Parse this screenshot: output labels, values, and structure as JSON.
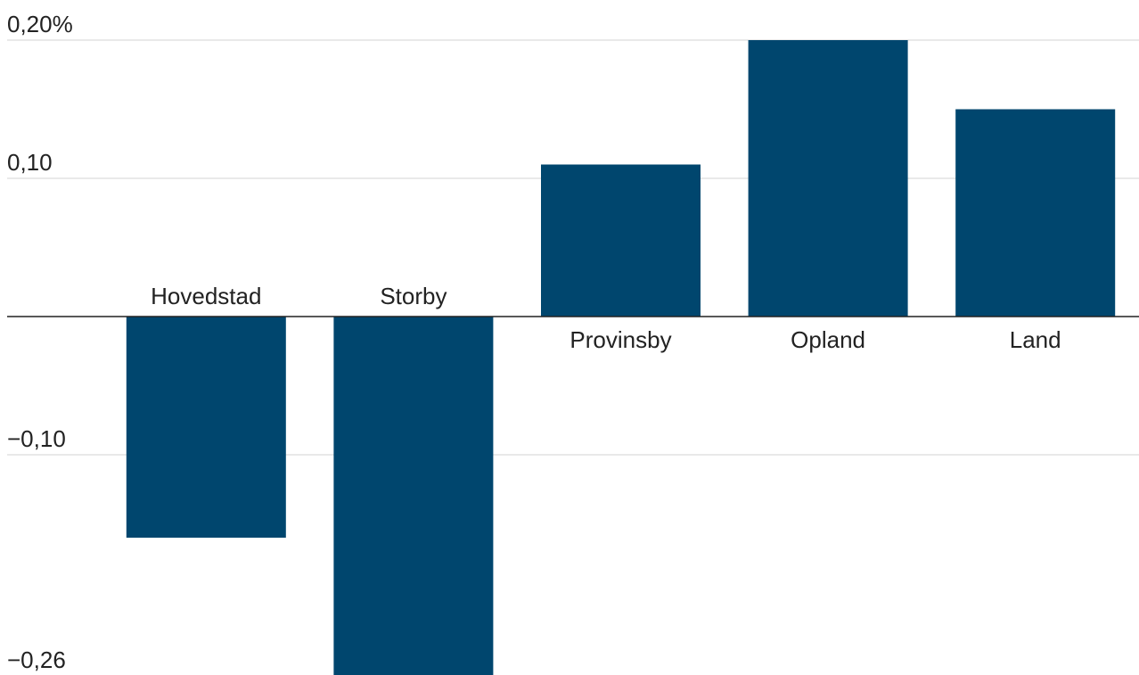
{
  "chart_data": {
    "type": "bar",
    "categories": [
      "Hovedstad",
      "Storby",
      "Provinsby",
      "Opland",
      "Land"
    ],
    "values": [
      -0.16,
      -0.26,
      0.11,
      0.2,
      0.15
    ],
    "ylim": [
      -0.26,
      0.2
    ],
    "ticks": [
      {
        "value": 0.2,
        "label": "0,20%"
      },
      {
        "value": 0.1,
        "label": "0,10"
      },
      {
        "value": -0.1,
        "label": "−0,10"
      },
      {
        "value": -0.26,
        "label": "−0,26"
      }
    ],
    "grid": true,
    "colors": {
      "bar": "#00466e",
      "grid": "#e2e2e2",
      "axis": "#222222",
      "text": "#222222"
    }
  }
}
